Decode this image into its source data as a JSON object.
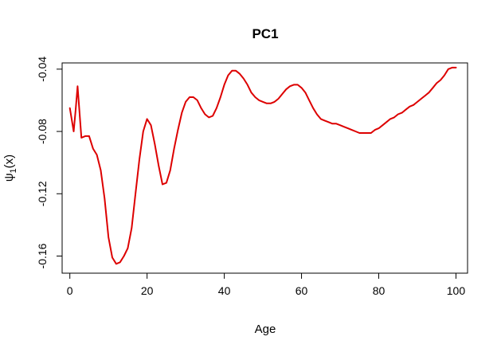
{
  "chart_data": {
    "type": "line",
    "title": "PC1",
    "xlabel": "Age",
    "ylabel": "ψ1(x)",
    "ylabel_parts": {
      "main": "ψ",
      "sub": "1",
      "tail": "(x)"
    },
    "xlim": [
      -2,
      103
    ],
    "ylim": [
      -0.171,
      -0.036
    ],
    "x_ticks": [
      0,
      20,
      40,
      60,
      80,
      100
    ],
    "x_tick_labels": [
      "0",
      "20",
      "40",
      "60",
      "80",
      "100"
    ],
    "y_ticks": [
      -0.16,
      -0.12,
      -0.08,
      -0.04
    ],
    "y_tick_labels": [
      "-0.16",
      "-0.12",
      "-0.08",
      "-0.04"
    ],
    "grid": false,
    "legend": "none",
    "series": [
      {
        "color": "#dd0000",
        "x": [
          0,
          1,
          1.5,
          2,
          3,
          4,
          5,
          6,
          7,
          8,
          9,
          10,
          11,
          12,
          13,
          14,
          15,
          16,
          17,
          18,
          19,
          20,
          21,
          22,
          23,
          24,
          25,
          26,
          27,
          28,
          29,
          30,
          31,
          32,
          33,
          34,
          35,
          36,
          37,
          38,
          39,
          40,
          41,
          42,
          43,
          44,
          45,
          46,
          47,
          48,
          49,
          50,
          51,
          52,
          53,
          54,
          55,
          56,
          57,
          58,
          59,
          60,
          61,
          62,
          63,
          64,
          65,
          66,
          67,
          68,
          69,
          70,
          71,
          72,
          73,
          74,
          75,
          76,
          77,
          78,
          79,
          80,
          81,
          82,
          83,
          84,
          85,
          86,
          87,
          88,
          89,
          90,
          91,
          92,
          93,
          94,
          95,
          96,
          97,
          98,
          99,
          100
        ],
        "y": [
          -0.065,
          -0.08,
          -0.066,
          -0.051,
          -0.084,
          -0.083,
          -0.083,
          -0.091,
          -0.095,
          -0.105,
          -0.123,
          -0.148,
          -0.161,
          -0.165,
          -0.164,
          -0.16,
          -0.155,
          -0.142,
          -0.12,
          -0.098,
          -0.08,
          -0.072,
          -0.076,
          -0.088,
          -0.102,
          -0.114,
          -0.113,
          -0.105,
          -0.091,
          -0.079,
          -0.068,
          -0.061,
          -0.058,
          -0.058,
          -0.06,
          -0.065,
          -0.069,
          -0.071,
          -0.07,
          -0.065,
          -0.058,
          -0.05,
          -0.044,
          -0.041,
          -0.041,
          -0.043,
          -0.046,
          -0.05,
          -0.055,
          -0.058,
          -0.06,
          -0.061,
          -0.062,
          -0.062,
          -0.061,
          -0.059,
          -0.056,
          -0.053,
          -0.051,
          -0.05,
          -0.05,
          -0.052,
          -0.055,
          -0.06,
          -0.065,
          -0.069,
          -0.072,
          -0.073,
          -0.074,
          -0.075,
          -0.075,
          -0.076,
          -0.077,
          -0.078,
          -0.079,
          -0.08,
          -0.081,
          -0.081,
          -0.081,
          -0.081,
          -0.079,
          -0.078,
          -0.076,
          -0.074,
          -0.072,
          -0.071,
          -0.069,
          -0.068,
          -0.066,
          -0.064,
          -0.063,
          -0.061,
          -0.059,
          -0.057,
          -0.055,
          -0.052,
          -0.049,
          -0.047,
          -0.044,
          -0.04,
          -0.039,
          -0.039
        ]
      }
    ]
  }
}
